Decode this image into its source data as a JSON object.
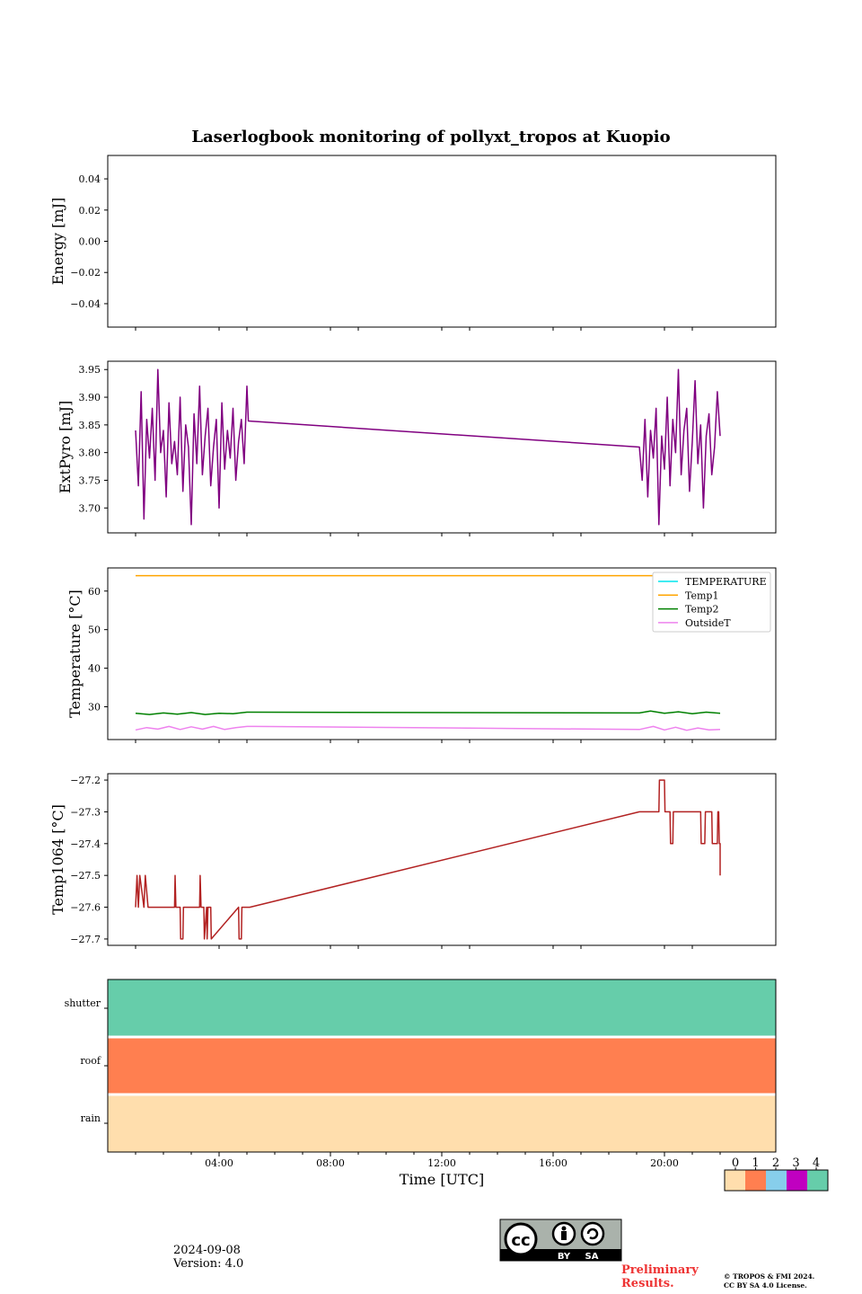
{
  "figure": {
    "title": "Laserlogbook monitoring of pollyxt_tropos at Kuopio",
    "date": "2024-09-08",
    "version": "Version: 4.0",
    "preliminary": "Preliminary Results.",
    "copyright_line1": "© TROPOS & FMI 2024.",
    "copyright_line2": "CC BY SA 4.0 License.",
    "license_badge": {
      "by": "BY",
      "sa": "SA"
    },
    "colors": {
      "extpyro": "#800080",
      "temp1": "#ffa500",
      "temp2": "#008000",
      "outside": "#ee82ee",
      "temperature": "#00e5ee",
      "temp1064": "#b22222",
      "flag0": "#ffdead",
      "flag1": "#ff7f50",
      "flag2": "#87ceeb",
      "flag3": "#c000c0",
      "flag4": "#66cdaa"
    }
  },
  "chart_data": [
    {
      "type": "line",
      "ylabel": "Energy [mJ]",
      "ylim": [
        -0.055,
        0.055
      ],
      "yticks": [
        "0.04",
        "0.02",
        "0.00",
        "−0.02",
        "−0.04"
      ],
      "ytick_values": [
        0.04,
        0.02,
        0.0,
        -0.02,
        -0.04
      ],
      "series": []
    },
    {
      "type": "line",
      "ylabel": "ExtPyro [mJ]",
      "ylim": [
        3.655,
        3.965
      ],
      "yticks": [
        "3.95",
        "3.90",
        "3.85",
        "3.80",
        "3.75",
        "3.70"
      ],
      "ytick_values": [
        3.95,
        3.9,
        3.85,
        3.8,
        3.75,
        3.7
      ],
      "series": [
        {
          "color_key": "extpyro",
          "x": [
            1.0,
            1.1,
            1.2,
            1.3,
            1.4,
            1.5,
            1.6,
            1.7,
            1.8,
            1.9,
            2.0,
            2.1,
            2.2,
            2.3,
            2.4,
            2.5,
            2.6,
            2.7,
            2.8,
            2.9,
            3.0,
            3.1,
            3.2,
            3.3,
            3.4,
            3.5,
            3.6,
            3.7,
            3.8,
            3.9,
            4.0,
            4.1,
            4.2,
            4.3,
            4.4,
            4.5,
            4.6,
            4.7,
            4.8,
            4.9,
            5.0,
            5.05,
            19.1,
            19.2,
            19.3,
            19.4,
            19.5,
            19.6,
            19.7,
            19.8,
            19.9,
            20.0,
            20.1,
            20.2,
            20.3,
            20.4,
            20.5,
            20.6,
            20.7,
            20.8,
            20.9,
            21.0,
            21.1,
            21.2,
            21.3,
            21.4,
            21.5,
            21.6,
            21.7,
            21.8,
            21.9,
            22.0
          ],
          "y": [
            3.84,
            3.74,
            3.91,
            3.68,
            3.86,
            3.79,
            3.88,
            3.75,
            3.95,
            3.8,
            3.84,
            3.72,
            3.89,
            3.78,
            3.82,
            3.76,
            3.9,
            3.73,
            3.85,
            3.81,
            3.67,
            3.87,
            3.78,
            3.92,
            3.76,
            3.83,
            3.88,
            3.74,
            3.81,
            3.86,
            3.7,
            3.89,
            3.77,
            3.84,
            3.79,
            3.88,
            3.75,
            3.82,
            3.86,
            3.78,
            3.92,
            3.857,
            3.81,
            3.75,
            3.86,
            3.72,
            3.84,
            3.79,
            3.88,
            3.67,
            3.83,
            3.77,
            3.9,
            3.74,
            3.86,
            3.8,
            3.95,
            3.76,
            3.84,
            3.88,
            3.73,
            3.82,
            3.93,
            3.78,
            3.85,
            3.7,
            3.83,
            3.87,
            3.76,
            3.81,
            3.91,
            3.83
          ]
        }
      ]
    },
    {
      "type": "line",
      "ylabel": "Temperature [°C]",
      "ylim": [
        21.5,
        66
      ],
      "yticks": [
        "60",
        "50",
        "40",
        "30"
      ],
      "ytick_values": [
        60,
        50,
        40,
        30
      ],
      "legend": {
        "placement": "top-right",
        "entries": [
          "TEMPERATURE",
          "Temp1",
          "Temp2",
          "OutsideT"
        ]
      },
      "series": [
        {
          "name": "TEMPERATURE",
          "color_key": "temperature",
          "x": [],
          "y": []
        },
        {
          "name": "Temp1",
          "color_key": "temp1",
          "x": [
            1.0,
            22.0
          ],
          "y": [
            64,
            64
          ]
        },
        {
          "name": "Temp2",
          "color_key": "temp2",
          "x": [
            1.0,
            1.5,
            2.0,
            2.5,
            3.0,
            3.5,
            4.0,
            4.5,
            5.0,
            5.1,
            19.1,
            19.5,
            20.0,
            20.5,
            21.0,
            21.5,
            22.0
          ],
          "y": [
            28.3,
            28.0,
            28.4,
            28.1,
            28.5,
            28.0,
            28.3,
            28.2,
            28.6,
            28.6,
            28.4,
            28.9,
            28.3,
            28.7,
            28.2,
            28.6,
            28.3
          ]
        },
        {
          "name": "OutsideT",
          "color_key": "outside",
          "x": [
            1.0,
            1.4,
            1.8,
            2.2,
            2.6,
            3.0,
            3.4,
            3.8,
            4.2,
            4.6,
            5.0,
            5.3,
            19.1,
            19.6,
            20.0,
            20.4,
            20.8,
            21.2,
            21.6,
            22.0
          ],
          "y": [
            24.0,
            24.6,
            24.2,
            24.9,
            24.1,
            24.8,
            24.2,
            24.9,
            24.1,
            24.6,
            24.9,
            24.9,
            24.1,
            24.9,
            24.0,
            24.7,
            23.9,
            24.5,
            24.0,
            24.1
          ]
        }
      ]
    },
    {
      "type": "line",
      "ylabel": "Temp1064 [°C]",
      "ylim": [
        -27.72,
        -27.18
      ],
      "yticks": [
        "−27.2",
        "−27.3",
        "−27.4",
        "−27.5",
        "−27.6",
        "−27.7"
      ],
      "ytick_values": [
        -27.2,
        -27.3,
        -27.4,
        -27.5,
        -27.6,
        -27.7
      ],
      "series": [
        {
          "color_key": "temp1064",
          "x": [
            1.0,
            1.05,
            1.1,
            1.15,
            1.3,
            1.35,
            1.45,
            1.5,
            2.4,
            2.42,
            2.45,
            2.6,
            2.62,
            2.7,
            2.72,
            3.3,
            3.32,
            3.35,
            3.45,
            3.47,
            3.55,
            3.57,
            3.6,
            3.7,
            3.72,
            4.7,
            4.72,
            4.8,
            4.82,
            5.1,
            19.1,
            19.8,
            19.82,
            20.0,
            20.02,
            20.2,
            20.22,
            20.3,
            20.32,
            21.3,
            21.32,
            21.45,
            21.47,
            21.7,
            21.72,
            21.9,
            21.92,
            21.95,
            21.97,
            22.0,
            22.0
          ],
          "y": [
            -27.6,
            -27.5,
            -27.6,
            -27.5,
            -27.6,
            -27.5,
            -27.6,
            -27.6,
            -27.6,
            -27.5,
            -27.6,
            -27.6,
            -27.7,
            -27.7,
            -27.6,
            -27.6,
            -27.5,
            -27.6,
            -27.6,
            -27.7,
            -27.6,
            -27.7,
            -27.6,
            -27.6,
            -27.7,
            -27.6,
            -27.7,
            -27.7,
            -27.6,
            -27.6,
            -27.3,
            -27.3,
            -27.2,
            -27.2,
            -27.3,
            -27.3,
            -27.4,
            -27.4,
            -27.3,
            -27.3,
            -27.4,
            -27.4,
            -27.3,
            -27.3,
            -27.4,
            -27.4,
            -27.3,
            -27.3,
            -27.4,
            -27.4,
            -27.5
          ]
        }
      ]
    },
    {
      "type": "heatmap",
      "rows": [
        "shutter",
        "roof",
        "rain"
      ],
      "row_color_keys": [
        "flag4",
        "flag1",
        "flag0"
      ],
      "xlabel": "Time [UTC]",
      "xlim": [
        0,
        24
      ],
      "xticks": [
        "04:00",
        "08:00",
        "12:00",
        "16:00",
        "20:00"
      ],
      "xtick_values": [
        4,
        8,
        12,
        16,
        20
      ],
      "colorbar": {
        "ticks": [
          "0",
          "1",
          "2",
          "3",
          "4"
        ],
        "color_keys": [
          "flag0",
          "flag1",
          "flag2",
          "flag3",
          "flag4"
        ]
      }
    }
  ]
}
